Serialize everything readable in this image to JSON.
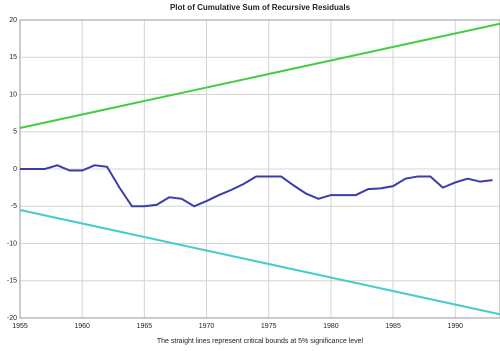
{
  "chart_data": {
    "type": "line",
    "title": "Plot of Cumulative Sum of Recursive Residuals",
    "xlabel": "The straight lines represent critical bounds at 5% significance level",
    "xlim": [
      1955,
      1993.6
    ],
    "ylim": [
      -20,
      20
    ],
    "xticks": [
      1955,
      1960,
      1965,
      1970,
      1975,
      1980,
      1985,
      1990
    ],
    "yticks": [
      20,
      15,
      10,
      5,
      0,
      -5,
      -10,
      -15,
      -20
    ],
    "grid": true,
    "series": [
      {
        "color": "#3c3caa",
        "x": [
          1955,
          1956,
          1957,
          1958,
          1959,
          1960,
          1961,
          1962,
          1963,
          1964,
          1965,
          1966,
          1967,
          1968,
          1969,
          1970,
          1971,
          1972,
          1973,
          1974,
          1975,
          1976,
          1977,
          1978,
          1979,
          1980,
          1981,
          1982,
          1983,
          1984,
          1985,
          1986,
          1987,
          1988,
          1989,
          1990,
          1991,
          1992,
          1993
        ],
        "values": [
          0,
          0,
          0,
          0.5,
          -0.2,
          -0.2,
          0.5,
          0.3,
          -2.5,
          -5,
          -5,
          -4.8,
          -3.8,
          -4,
          -5,
          -4.3,
          -3.5,
          -2.8,
          -2,
          -1,
          -1,
          -1,
          -2.2,
          -3.3,
          -4,
          -3.5,
          -3.5,
          -3.5,
          -2.7,
          -2.6,
          -2.3,
          -1.3,
          -1,
          -1,
          -2.5,
          -1.8,
          -1.3,
          -1.7,
          -1.5
        ]
      },
      {
        "color": "#44cc44",
        "x": [
          1955,
          1993.6
        ],
        "values": [
          5.5,
          19.5
        ]
      },
      {
        "color": "#44cccc",
        "x": [
          1955,
          1993.6
        ],
        "values": [
          -5.5,
          -19.5
        ]
      }
    ]
  }
}
